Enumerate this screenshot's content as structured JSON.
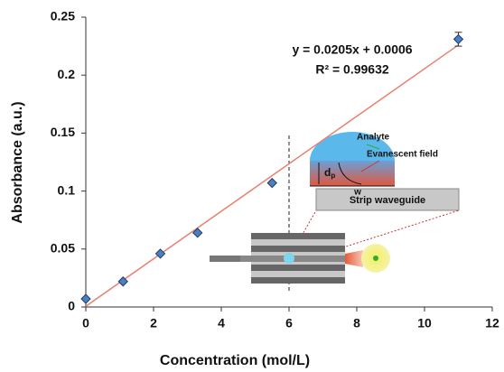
{
  "chart_data": {
    "type": "scatter",
    "xlabel": "Concentration (mol/L)",
    "ylabel": "Absorbance (a.u.)",
    "x": [
      0,
      1.1,
      2.2,
      3.3,
      5.5,
      11
    ],
    "series": [
      {
        "color": "#4a7fc1",
        "values": [
          0.007,
          0.022,
          0.046,
          0.064,
          0.107,
          0.231
        ],
        "errors": [
          null,
          null,
          null,
          null,
          null,
          0.006
        ]
      }
    ],
    "trendline": {
      "color": "#e8806f",
      "x": [
        0,
        11
      ],
      "values": [
        0.0006,
        0.226
      ]
    },
    "xlim": [
      0,
      12
    ],
    "xticks": [
      0,
      2,
      4,
      6,
      8,
      10,
      12
    ],
    "ylim": [
      0,
      0.25
    ],
    "yticks": [
      0,
      0.05,
      0.1,
      0.15,
      0.2,
      0.25
    ],
    "annotations": [
      "y = 0.0205x + 0.0006",
      "R² = 0.99632"
    ],
    "inset": {
      "analyte": "Analyte",
      "field": "Evanescent field",
      "depth": "d",
      "depth_sub": "p",
      "width": "w",
      "waveguide": "Strip waveguide"
    }
  }
}
